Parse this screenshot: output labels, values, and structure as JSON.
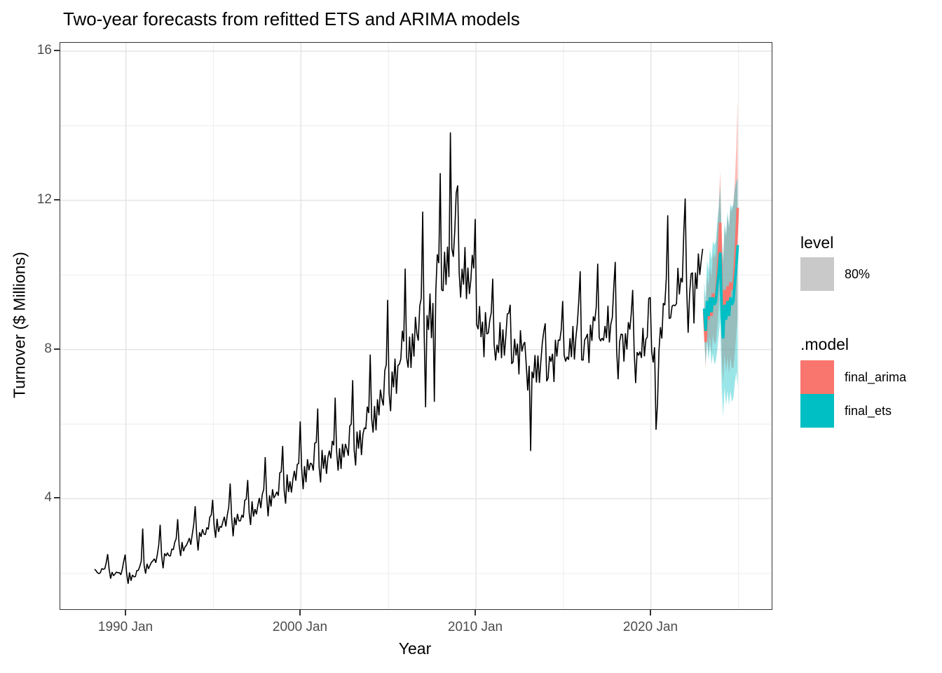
{
  "title": "Two-year forecasts from refitted ETS and ARIMA models",
  "axes": {
    "x_label": "Year",
    "y_label": "Turnover ($ Millions)",
    "x_ticks": [
      {
        "label": "1990 Jan",
        "year": 1990
      },
      {
        "label": "2000 Jan",
        "year": 2000
      },
      {
        "label": "2010 Jan",
        "year": 2010
      },
      {
        "label": "2020 Jan",
        "year": 2020
      }
    ],
    "y_ticks": [
      {
        "label": "4",
        "value": 4
      },
      {
        "label": "8",
        "value": 8
      },
      {
        "label": "12",
        "value": 12
      },
      {
        "label": "16",
        "value": 16
      }
    ]
  },
  "legend": {
    "level": {
      "title": "level",
      "items": [
        {
          "label": "80%",
          "color": "#C9C9C9"
        }
      ]
    },
    "model": {
      "title": ".model",
      "items": [
        {
          "label": "final_arima",
          "color": "#F8766D"
        },
        {
          "label": "final_ets",
          "color": "#00BFC4"
        }
      ]
    }
  },
  "chart_data": {
    "type": "line",
    "title": "Two-year forecasts from refitted ETS and ARIMA models",
    "xlabel": "Year",
    "ylabel": "Turnover ($ Millions)",
    "xlim": [
      1986.25,
      2026.9
    ],
    "ylim": [
      1.05,
      16.22
    ],
    "grid": true,
    "legend_position": "right",
    "x_major": [
      1990,
      2000,
      2010,
      2020
    ],
    "x_minor": [
      1995,
      2005,
      2015,
      2025
    ],
    "y_major": [
      4,
      8,
      12,
      16
    ],
    "y_minor": [
      2,
      6,
      10,
      14
    ],
    "level_label": "80%",
    "observed": {
      "name": "Turnover (observed)",
      "color": "#000000",
      "start_year": 1988,
      "start_month": 3,
      "end_year": 2022,
      "end_month": 12,
      "annual_base": {
        "1988": 2.1,
        "1989": 2.05,
        "1990": 2.0,
        "1991": 2.35,
        "1992": 2.6,
        "1993": 2.85,
        "1994": 3.2,
        "1995": 3.4,
        "1996": 3.55,
        "1997": 3.85,
        "1998": 4.2,
        "1999": 4.55,
        "2000": 5.0,
        "2001": 5.15,
        "2002": 5.4,
        "2003": 5.75,
        "2004": 6.7,
        "2005": 7.6,
        "2006": 8.5,
        "2007": 9.2,
        "2008": 11.0,
        "2009": 10.2,
        "2010": 8.6,
        "2011": 8.4,
        "2012": 8.2,
        "2013": 7.6,
        "2014": 8.0,
        "2015": 8.3,
        "2016": 8.5,
        "2017": 8.8,
        "2018": 8.4,
        "2019": 8.2,
        "2020": 8.6,
        "2021": 9.8,
        "2022": 10.2
      },
      "seasonal_by_month": [
        0.97,
        0.9,
        0.99,
        0.95,
        0.99,
        0.94,
        1.0,
        0.98,
        0.99,
        1.04,
        1.09,
        1.26
      ],
      "anomalies": {
        "1990-02": 1.72,
        "1990-04": 1.8,
        "1990-12": 3.2,
        "1991-12": 3.3,
        "1992-12": 3.45,
        "2007-02": 6.45,
        "2007-08": 6.6,
        "2008-07": 13.82,
        "2008-11": 12.2,
        "2008-12": 12.4,
        "2009-12": 11.5,
        "2010-12": 9.9,
        "2011-12": 9.2,
        "2012-11": 7.6,
        "2012-12": 6.9,
        "2013-02": 5.28,
        "2013-12": 8.7,
        "2014-12": 9.3,
        "2015-12": 10.1,
        "2016-12": 10.3,
        "2017-12": 10.35,
        "2018-02": 7.2,
        "2018-12": 9.6,
        "2019-02": 7.1,
        "2019-12": 9.4,
        "2020-04": 5.85,
        "2020-05": 6.55,
        "2020-12": 11.6,
        "2021-12": 12.05,
        "2022-02": 8.45,
        "2022-06": 8.7,
        "2022-10": 10.0,
        "2022-11": 10.4,
        "2022-12": 10.7
      }
    },
    "forecasts": [
      {
        "name": "final_arima",
        "color": "#F8766D",
        "fill": "rgba(248,118,109,0.48)",
        "start_year": 2023,
        "start_month": 1,
        "mean": [
          9.0,
          8.2,
          9.2,
          8.8,
          9.3,
          8.9,
          9.5,
          9.3,
          9.4,
          9.9,
          10.5,
          11.4,
          9.3,
          8.7,
          9.6,
          9.2,
          9.7,
          9.3,
          9.8,
          9.6,
          9.7,
          10.2,
          10.9,
          11.8
        ],
        "hi80": [
          9.6,
          8.9,
          10.0,
          9.7,
          10.25,
          9.9,
          10.6,
          10.45,
          10.6,
          11.2,
          11.85,
          12.8,
          10.8,
          10.3,
          11.3,
          11.0,
          11.6,
          11.25,
          11.8,
          11.7,
          11.9,
          12.5,
          13.4,
          14.7
        ],
        "lo80": [
          8.4,
          7.5,
          8.4,
          7.9,
          8.35,
          7.9,
          8.4,
          8.15,
          8.2,
          8.6,
          9.15,
          10.0,
          7.8,
          7.1,
          7.9,
          7.4,
          7.8,
          7.35,
          7.8,
          7.5,
          7.5,
          7.9,
          8.4,
          8.9
        ]
      },
      {
        "name": "final_ets",
        "color": "#00BFC4",
        "fill": "rgba(0,191,196,0.40)",
        "start_year": 2023,
        "start_month": 1,
        "mean": [
          9.1,
          8.5,
          9.3,
          8.9,
          9.4,
          9.0,
          9.4,
          9.2,
          9.3,
          9.7,
          10.1,
          10.6,
          9.0,
          8.3,
          9.2,
          8.8,
          9.3,
          8.9,
          9.4,
          9.2,
          9.3,
          9.8,
          10.2,
          10.8
        ],
        "hi80": [
          9.8,
          9.4,
          10.4,
          10.1,
          10.7,
          10.4,
          10.9,
          10.8,
          10.9,
          11.4,
          11.8,
          12.4,
          11.0,
          10.4,
          11.4,
          11.1,
          11.7,
          11.3,
          11.9,
          11.8,
          11.9,
          12.3,
          12.5,
          12.6
        ],
        "lo80": [
          8.4,
          7.6,
          8.2,
          7.7,
          8.1,
          7.6,
          7.9,
          7.6,
          7.7,
          8.0,
          8.4,
          8.8,
          7.0,
          6.2,
          7.0,
          6.5,
          6.9,
          6.5,
          6.9,
          6.6,
          6.7,
          7.1,
          7.4,
          7.0
        ]
      }
    ]
  }
}
